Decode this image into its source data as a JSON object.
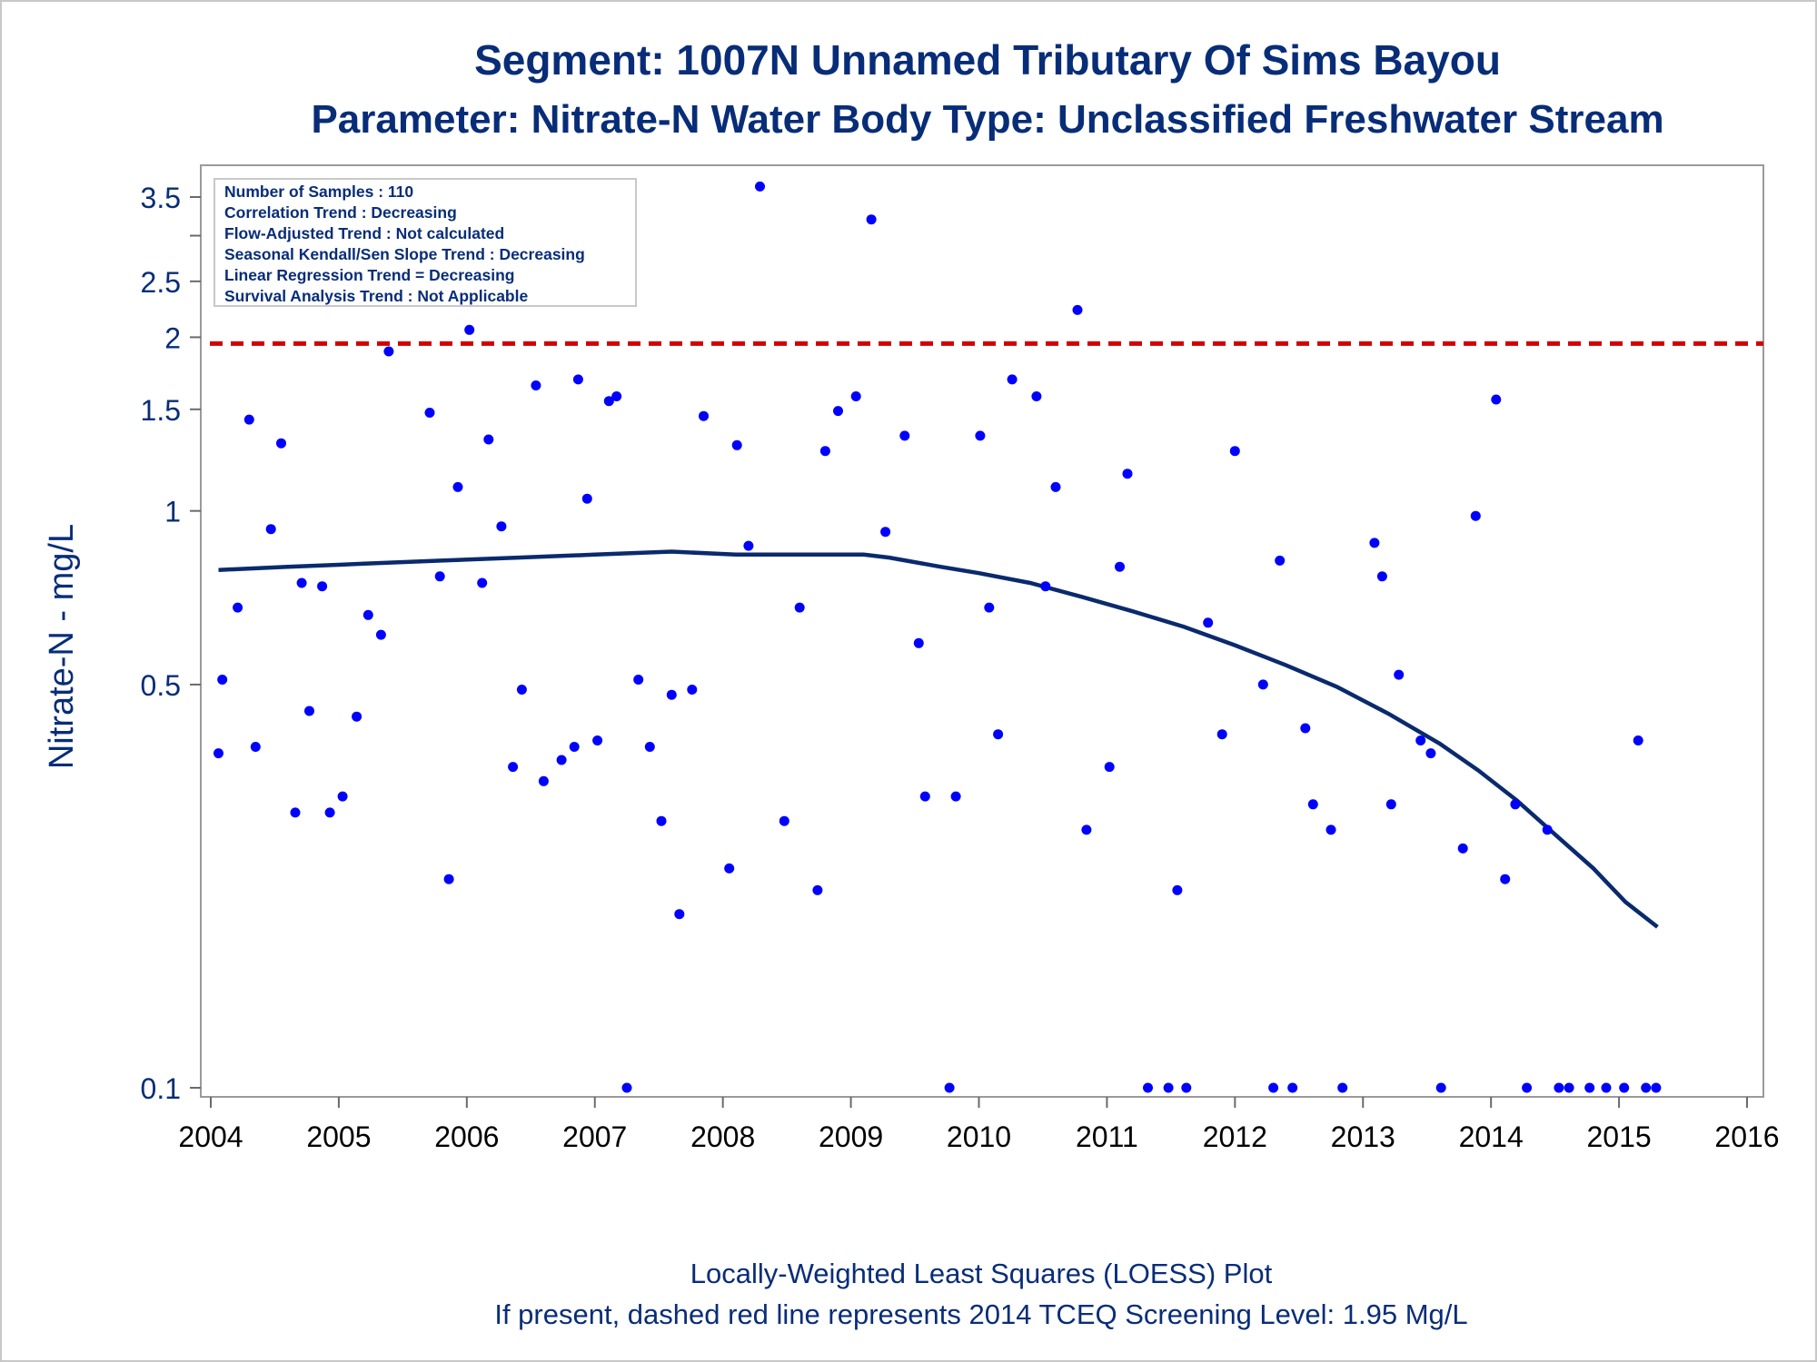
{
  "chart_data": {
    "type": "scatter",
    "title": "Segment: 1007N  Unnamed Tributary Of Sims Bayou",
    "subtitle": "Parameter: Nitrate-N   Water Body Type: Unclassified Freshwater Stream",
    "xlabel": "",
    "ylabel": "Nitrate-N - mg/L",
    "xlim": [
      2004,
      2016
    ],
    "ylim": [
      0.1,
      3.8
    ],
    "y_scale": "log",
    "x_ticks": [
      2004,
      2005,
      2006,
      2007,
      2008,
      2009,
      2010,
      2011,
      2012,
      2013,
      2014,
      2015,
      2016
    ],
    "y_ticks": [
      0.1,
      0.5,
      1,
      1.5,
      2,
      2.5,
      3.5
    ],
    "grid": false,
    "colors": {
      "points": "#0000ff",
      "loess": "#0a2a6e",
      "screening": "#d40000",
      "text": "#082d78"
    },
    "inset": [
      "Number of Samples : 110",
      "Correlation Trend : Decreasing",
      "Flow-Adjusted Trend : Not calculated",
      "Seasonal Kendall/Sen Slope Trend : Decreasing",
      "Linear Regression Trend = Decreasing",
      "Survival Analysis Trend : Not Applicable"
    ],
    "screening_level": 1.95,
    "footnotes": [
      "Locally-Weighted Least Squares (LOESS) Plot",
      "If present, dashed red line represents 2014 TCEQ Screening Level: 1.95 Mg/L"
    ],
    "points": [
      [
        2004.06,
        0.38
      ],
      [
        2004.09,
        0.51
      ],
      [
        2004.21,
        0.68
      ],
      [
        2004.3,
        1.44
      ],
      [
        2004.35,
        0.39
      ],
      [
        2004.47,
        0.93
      ],
      [
        2004.55,
        1.31
      ],
      [
        2004.66,
        0.3
      ],
      [
        2004.71,
        0.75
      ],
      [
        2004.77,
        0.45
      ],
      [
        2004.87,
        0.74
      ],
      [
        2004.93,
        0.3
      ],
      [
        2005.03,
        0.32
      ],
      [
        2005.14,
        0.44
      ],
      [
        2005.23,
        0.66
      ],
      [
        2005.33,
        0.61
      ],
      [
        2005.39,
        1.89
      ],
      [
        2005.71,
        1.48
      ],
      [
        2005.79,
        0.77
      ],
      [
        2005.86,
        0.23
      ],
      [
        2005.93,
        1.1
      ],
      [
        2006.02,
        2.06
      ],
      [
        2006.12,
        0.75
      ],
      [
        2006.17,
        1.33
      ],
      [
        2006.27,
        0.94
      ],
      [
        2006.36,
        0.36
      ],
      [
        2006.43,
        0.49
      ],
      [
        2006.54,
        1.65
      ],
      [
        2006.6,
        0.34
      ],
      [
        2006.74,
        0.37
      ],
      [
        2006.84,
        0.39
      ],
      [
        2006.87,
        1.69
      ],
      [
        2006.94,
        1.05
      ],
      [
        2007.02,
        0.4
      ],
      [
        2007.11,
        1.55
      ],
      [
        2007.17,
        1.58
      ],
      [
        2007.25,
        0.1
      ],
      [
        2007.34,
        0.51
      ],
      [
        2007.43,
        0.39
      ],
      [
        2007.52,
        0.29
      ],
      [
        2007.6,
        0.48
      ],
      [
        2007.66,
        0.2
      ],
      [
        2007.76,
        0.49
      ],
      [
        2007.85,
        1.46
      ],
      [
        2008.05,
        0.24
      ],
      [
        2008.11,
        1.3
      ],
      [
        2008.2,
        0.87
      ],
      [
        2008.29,
        3.65
      ],
      [
        2008.48,
        0.29
      ],
      [
        2008.6,
        0.68
      ],
      [
        2008.74,
        0.22
      ],
      [
        2008.8,
        1.27
      ],
      [
        2008.9,
        1.49
      ],
      [
        2009.04,
        1.58
      ],
      [
        2009.16,
        3.2
      ],
      [
        2009.27,
        0.92
      ],
      [
        2009.42,
        1.35
      ],
      [
        2009.53,
        0.59
      ],
      [
        2009.58,
        0.32
      ],
      [
        2009.77,
        0.1
      ],
      [
        2009.82,
        0.32
      ],
      [
        2010.01,
        1.35
      ],
      [
        2010.08,
        0.68
      ],
      [
        2010.15,
        0.41
      ],
      [
        2010.26,
        1.69
      ],
      [
        2010.45,
        1.58
      ],
      [
        2010.52,
        0.74
      ],
      [
        2010.6,
        1.1
      ],
      [
        2010.77,
        2.23
      ],
      [
        2010.84,
        0.28
      ],
      [
        2011.02,
        0.36
      ],
      [
        2011.1,
        0.8
      ],
      [
        2011.16,
        1.16
      ],
      [
        2011.32,
        0.1
      ],
      [
        2011.48,
        0.1
      ],
      [
        2011.55,
        0.22
      ],
      [
        2011.62,
        0.1
      ],
      [
        2011.79,
        0.64
      ],
      [
        2011.9,
        0.41
      ],
      [
        2012.0,
        1.27
      ],
      [
        2012.22,
        0.5
      ],
      [
        2012.3,
        0.1
      ],
      [
        2012.35,
        0.82
      ],
      [
        2012.45,
        0.1
      ],
      [
        2012.55,
        0.42
      ],
      [
        2012.61,
        0.31
      ],
      [
        2012.75,
        0.28
      ],
      [
        2012.84,
        0.1
      ],
      [
        2013.09,
        0.88
      ],
      [
        2013.15,
        0.77
      ],
      [
        2013.22,
        0.31
      ],
      [
        2013.28,
        0.52
      ],
      [
        2013.45,
        0.4
      ],
      [
        2013.53,
        0.38
      ],
      [
        2013.61,
        0.1
      ],
      [
        2013.78,
        0.26
      ],
      [
        2013.88,
        0.98
      ],
      [
        2014.04,
        1.56
      ],
      [
        2014.11,
        0.23
      ],
      [
        2014.19,
        0.31
      ],
      [
        2014.28,
        0.1
      ],
      [
        2014.44,
        0.28
      ],
      [
        2014.53,
        0.1
      ],
      [
        2014.61,
        0.1
      ],
      [
        2014.77,
        0.1
      ],
      [
        2014.9,
        0.1
      ],
      [
        2015.04,
        0.1
      ],
      [
        2015.15,
        0.4
      ],
      [
        2015.21,
        0.1
      ],
      [
        2015.29,
        0.1
      ]
    ],
    "loess": [
      [
        2004.06,
        0.79
      ],
      [
        2004.6,
        0.8
      ],
      [
        2005.2,
        0.81
      ],
      [
        2005.8,
        0.82
      ],
      [
        2006.4,
        0.83
      ],
      [
        2007.0,
        0.84
      ],
      [
        2007.6,
        0.85
      ],
      [
        2008.1,
        0.84
      ],
      [
        2008.6,
        0.84
      ],
      [
        2009.1,
        0.84
      ],
      [
        2009.3,
        0.83
      ],
      [
        2009.7,
        0.8
      ],
      [
        2010.0,
        0.78
      ],
      [
        2010.4,
        0.75
      ],
      [
        2010.8,
        0.71
      ],
      [
        2011.2,
        0.67
      ],
      [
        2011.6,
        0.63
      ],
      [
        2012.0,
        0.585
      ],
      [
        2012.4,
        0.54
      ],
      [
        2012.8,
        0.495
      ],
      [
        2013.2,
        0.445
      ],
      [
        2013.6,
        0.395
      ],
      [
        2013.9,
        0.355
      ],
      [
        2014.2,
        0.315
      ],
      [
        2014.5,
        0.275
      ],
      [
        2014.8,
        0.24
      ],
      [
        2015.05,
        0.21
      ],
      [
        2015.3,
        0.19
      ]
    ]
  }
}
